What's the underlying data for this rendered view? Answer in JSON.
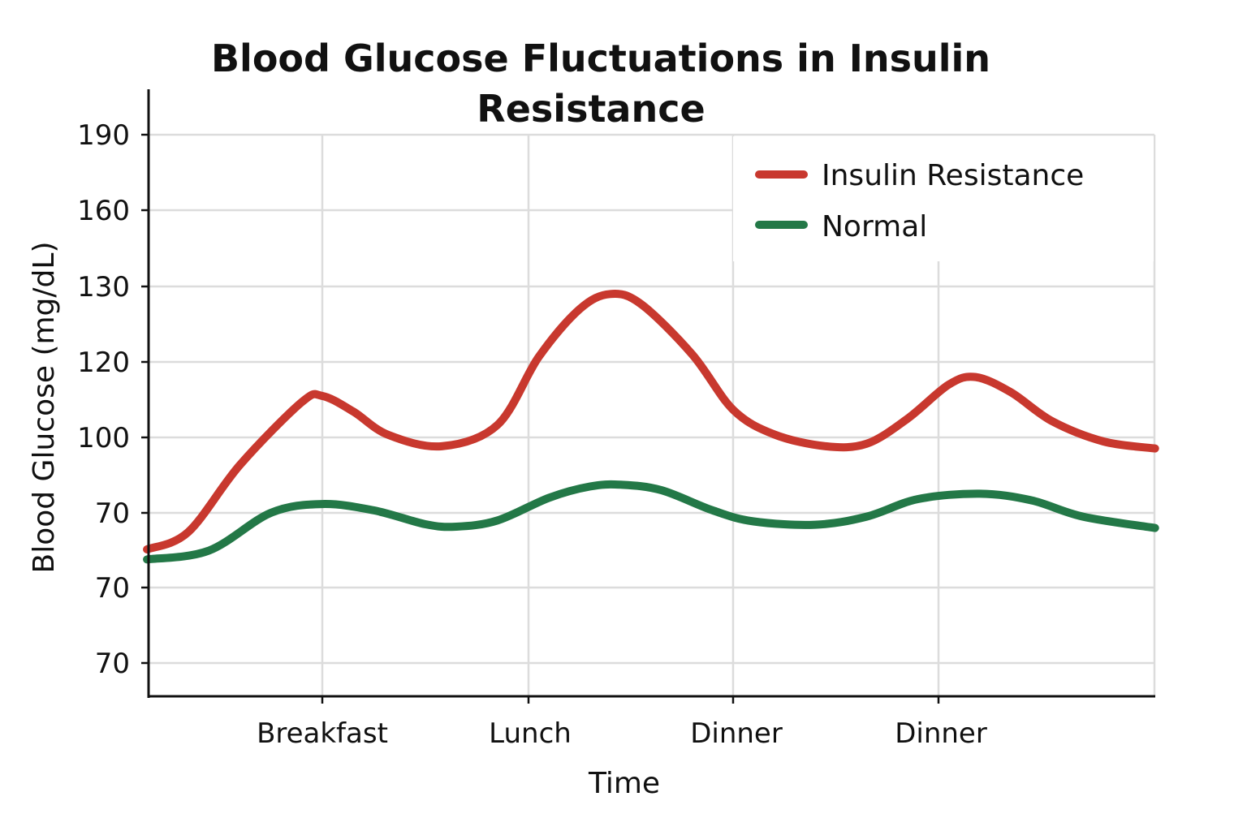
{
  "chart_data": {
    "type": "line",
    "title_line1": "Blood Glucose Fluctuations in Insulin",
    "title_line2": "Resistance",
    "xlabel": "Time",
    "ylabel": "Blood Glucose (mg/dL)",
    "y_tick_labels": [
      "190",
      "160",
      "130",
      "120",
      "100",
      "70",
      "70",
      "70"
    ],
    "x_tick_labels": [
      "Breakfast",
      "Lunch",
      "Dinner",
      "Dinner"
    ],
    "grid": true,
    "legend_position": "top-right",
    "series": [
      {
        "name": "Insulin Resistance",
        "color": "#c8382e",
        "points": [
          [
            -0.85,
            55.5
          ],
          [
            -0.65,
            62.4
          ],
          [
            -0.4,
            89.0
          ],
          [
            -0.1,
            114.0
          ],
          [
            0.0,
            116.5
          ],
          [
            0.15,
            110.3
          ],
          [
            0.32,
            101.0
          ],
          [
            0.58,
            96.5
          ],
          [
            0.85,
            105.0
          ],
          [
            1.05,
            132.0
          ],
          [
            1.25,
            151.0
          ],
          [
            1.4,
            157.0
          ],
          [
            1.55,
            153.0
          ],
          [
            1.8,
            133.0
          ],
          [
            2.0,
            111.0
          ],
          [
            2.2,
            101.2
          ],
          [
            2.45,
            96.5
          ],
          [
            2.65,
            97.5
          ],
          [
            2.85,
            107.5
          ],
          [
            3.05,
            121.0
          ],
          [
            3.18,
            124.0
          ],
          [
            3.35,
            118.0
          ],
          [
            3.55,
            106.5
          ],
          [
            3.8,
            98.4
          ],
          [
            4.05,
            95.6
          ]
        ]
      },
      {
        "name": "Normal",
        "color": "#237847",
        "points": [
          [
            -0.85,
            51.5
          ],
          [
            -0.55,
            55.0
          ],
          [
            -0.25,
            70.0
          ],
          [
            0.0,
            73.5
          ],
          [
            0.25,
            71.0
          ],
          [
            0.5,
            65.5
          ],
          [
            0.65,
            64.5
          ],
          [
            0.85,
            67.0
          ],
          [
            1.1,
            76.0
          ],
          [
            1.3,
            80.5
          ],
          [
            1.45,
            81.2
          ],
          [
            1.65,
            79.0
          ],
          [
            1.9,
            71.0
          ],
          [
            2.1,
            66.6
          ],
          [
            2.4,
            65.3
          ],
          [
            2.65,
            68.5
          ],
          [
            2.9,
            75.5
          ],
          [
            3.2,
            77.6
          ],
          [
            3.45,
            75.0
          ],
          [
            3.7,
            68.5
          ],
          [
            4.05,
            64.0
          ]
        ]
      }
    ]
  }
}
